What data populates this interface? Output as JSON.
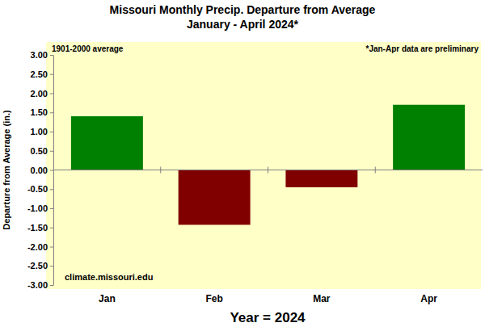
{
  "chart_data": {
    "type": "bar",
    "title": "Missouri Monthly Precip. Departure from Average",
    "subtitle": "January - April 2024*",
    "x_label": "Year = 2024",
    "y_label": "Departure from Average (in.)",
    "annotations": [
      "1901-2000 average",
      "*Jan-Apr data are preliminary",
      "climate.missouri.edu"
    ],
    "categories": [
      "Jan",
      "Feb",
      "Mar",
      "Apr"
    ],
    "values": [
      1.4,
      -1.43,
      -0.45,
      1.7
    ],
    "colors": [
      "#008000",
      "#800000",
      "#800000",
      "#008000"
    ],
    "ylim": [
      -3,
      3
    ],
    "yticks": [
      {
        "value": -3,
        "label": "-3.00"
      },
      {
        "value": -2.5,
        "label": "-2.50"
      },
      {
        "value": -2,
        "label": "-2.00"
      },
      {
        "value": -1.5,
        "label": "-1.50"
      },
      {
        "value": -1,
        "label": "-1.00"
      },
      {
        "value": -0.5,
        "label": "-0.50"
      },
      {
        "value": 0,
        "label": "0.00"
      },
      {
        "value": 0.5,
        "label": "0.50"
      },
      {
        "value": 1,
        "label": "1.00"
      },
      {
        "value": 1.5,
        "label": "1.50"
      },
      {
        "value": 2,
        "label": "2.00"
      },
      {
        "value": 2.5,
        "label": "2.50"
      },
      {
        "value": 3,
        "label": "3.00"
      }
    ],
    "grid": false
  }
}
